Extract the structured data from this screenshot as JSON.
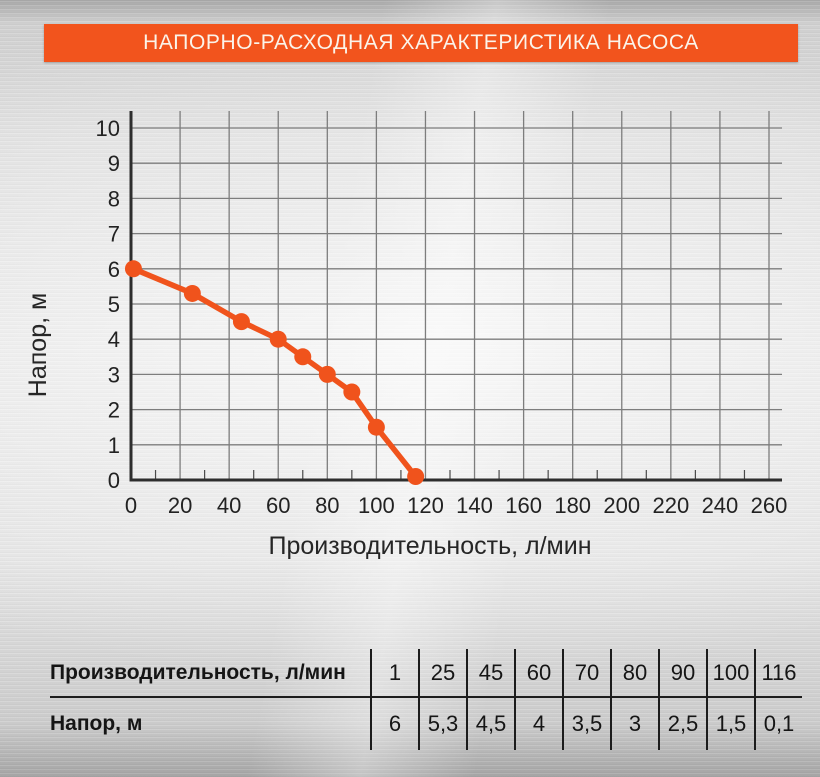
{
  "header": {
    "title": "НАПОРНО-РАСХОДНАЯ ХАРАКТЕРИСТИКА НАСОСА",
    "bg_color": "#F2541D",
    "text_color": "#FBF4EA"
  },
  "chart_data": {
    "type": "line",
    "title": "",
    "xlabel": "Производительность, л/мин",
    "ylabel": "Напор, м",
    "x": [
      1,
      25,
      45,
      60,
      70,
      80,
      90,
      100,
      116
    ],
    "y": [
      6,
      5.3,
      4.5,
      4,
      3.5,
      3,
      2.5,
      1.5,
      0.1
    ],
    "xlim": [
      0,
      260
    ],
    "ylim": [
      0,
      10
    ],
    "x_ticks": [
      0,
      20,
      40,
      60,
      80,
      100,
      120,
      140,
      160,
      180,
      200,
      220,
      240,
      260
    ],
    "y_ticks": [
      0,
      1,
      2,
      3,
      4,
      5,
      6,
      7,
      8,
      9,
      10
    ],
    "x_minor_step": 10,
    "grid": true,
    "legend": "none",
    "line_color": "#F0531C",
    "marker": "circle",
    "grid_color": "#7d7d7d",
    "axis_color": "#2e2e2e",
    "tick_text_color": "#222222"
  },
  "table": {
    "rows": [
      {
        "label": "Производительность, л/мин",
        "values": [
          "1",
          "25",
          "45",
          "60",
          "70",
          "80",
          "90",
          "100",
          "116"
        ]
      },
      {
        "label": "Напор, м",
        "values": [
          "6",
          "5,3",
          "4,5",
          "4",
          "3,5",
          "3",
          "2,5",
          "1,5",
          "0,1"
        ]
      }
    ]
  }
}
